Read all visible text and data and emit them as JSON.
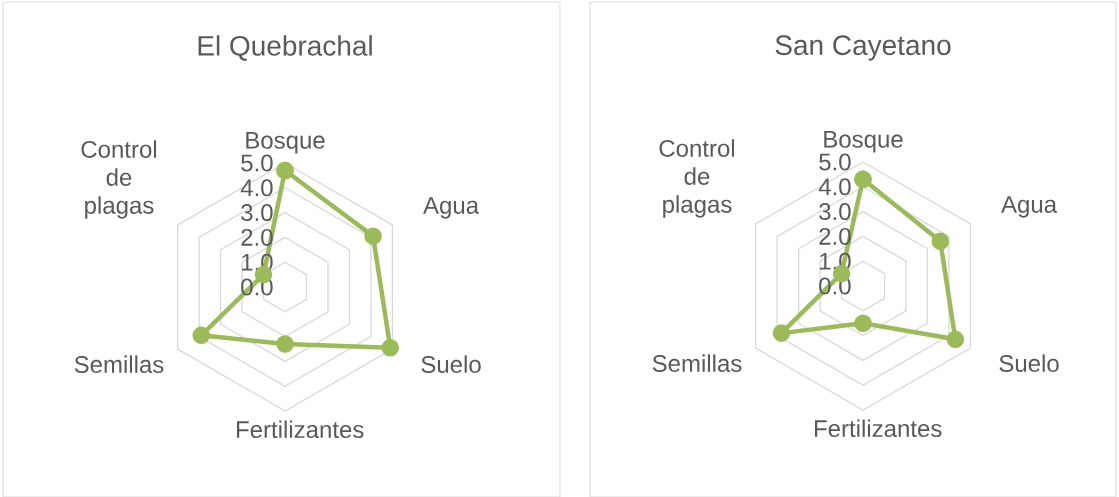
{
  "chart_data": [
    {
      "type": "radar",
      "title": "El Quebrachal",
      "categories": [
        "Bosque",
        "Agua",
        "Suelo",
        "Fertilizantes",
        "Semillas",
        "Control de plagas"
      ],
      "series": [
        {
          "color": "#9bbb59",
          "values": [
            4.7,
            4.1,
            4.9,
            2.3,
            3.9,
            1.0
          ]
        }
      ],
      "ylim": [
        0,
        5
      ],
      "yticks": [
        {
          "value": 0,
          "label": "0.0"
        },
        {
          "value": 1,
          "label": "1.0"
        },
        {
          "value": 2,
          "label": "2.0"
        },
        {
          "value": 3,
          "label": "3.0"
        },
        {
          "value": 4,
          "label": "4.0"
        },
        {
          "value": 5,
          "label": "5.0"
        }
      ],
      "grid": true,
      "marker": "circle"
    },
    {
      "type": "radar",
      "title": "San Cayetano",
      "categories": [
        "Bosque",
        "Agua",
        "Suelo",
        "Fertilizantes",
        "Semillas",
        "Control de plagas"
      ],
      "series": [
        {
          "color": "#9bbb59",
          "values": [
            4.3,
            3.6,
            4.3,
            1.5,
            3.8,
            1.0
          ]
        }
      ],
      "ylim": [
        0,
        5
      ],
      "yticks": [
        {
          "value": 0,
          "label": "0.0"
        },
        {
          "value": 1,
          "label": "1.0"
        },
        {
          "value": 2,
          "label": "2.0"
        },
        {
          "value": 3,
          "label": "3.0"
        },
        {
          "value": 4,
          "label": "4.0"
        },
        {
          "value": 5,
          "label": "5.0"
        }
      ],
      "grid": true,
      "marker": "circle"
    }
  ]
}
